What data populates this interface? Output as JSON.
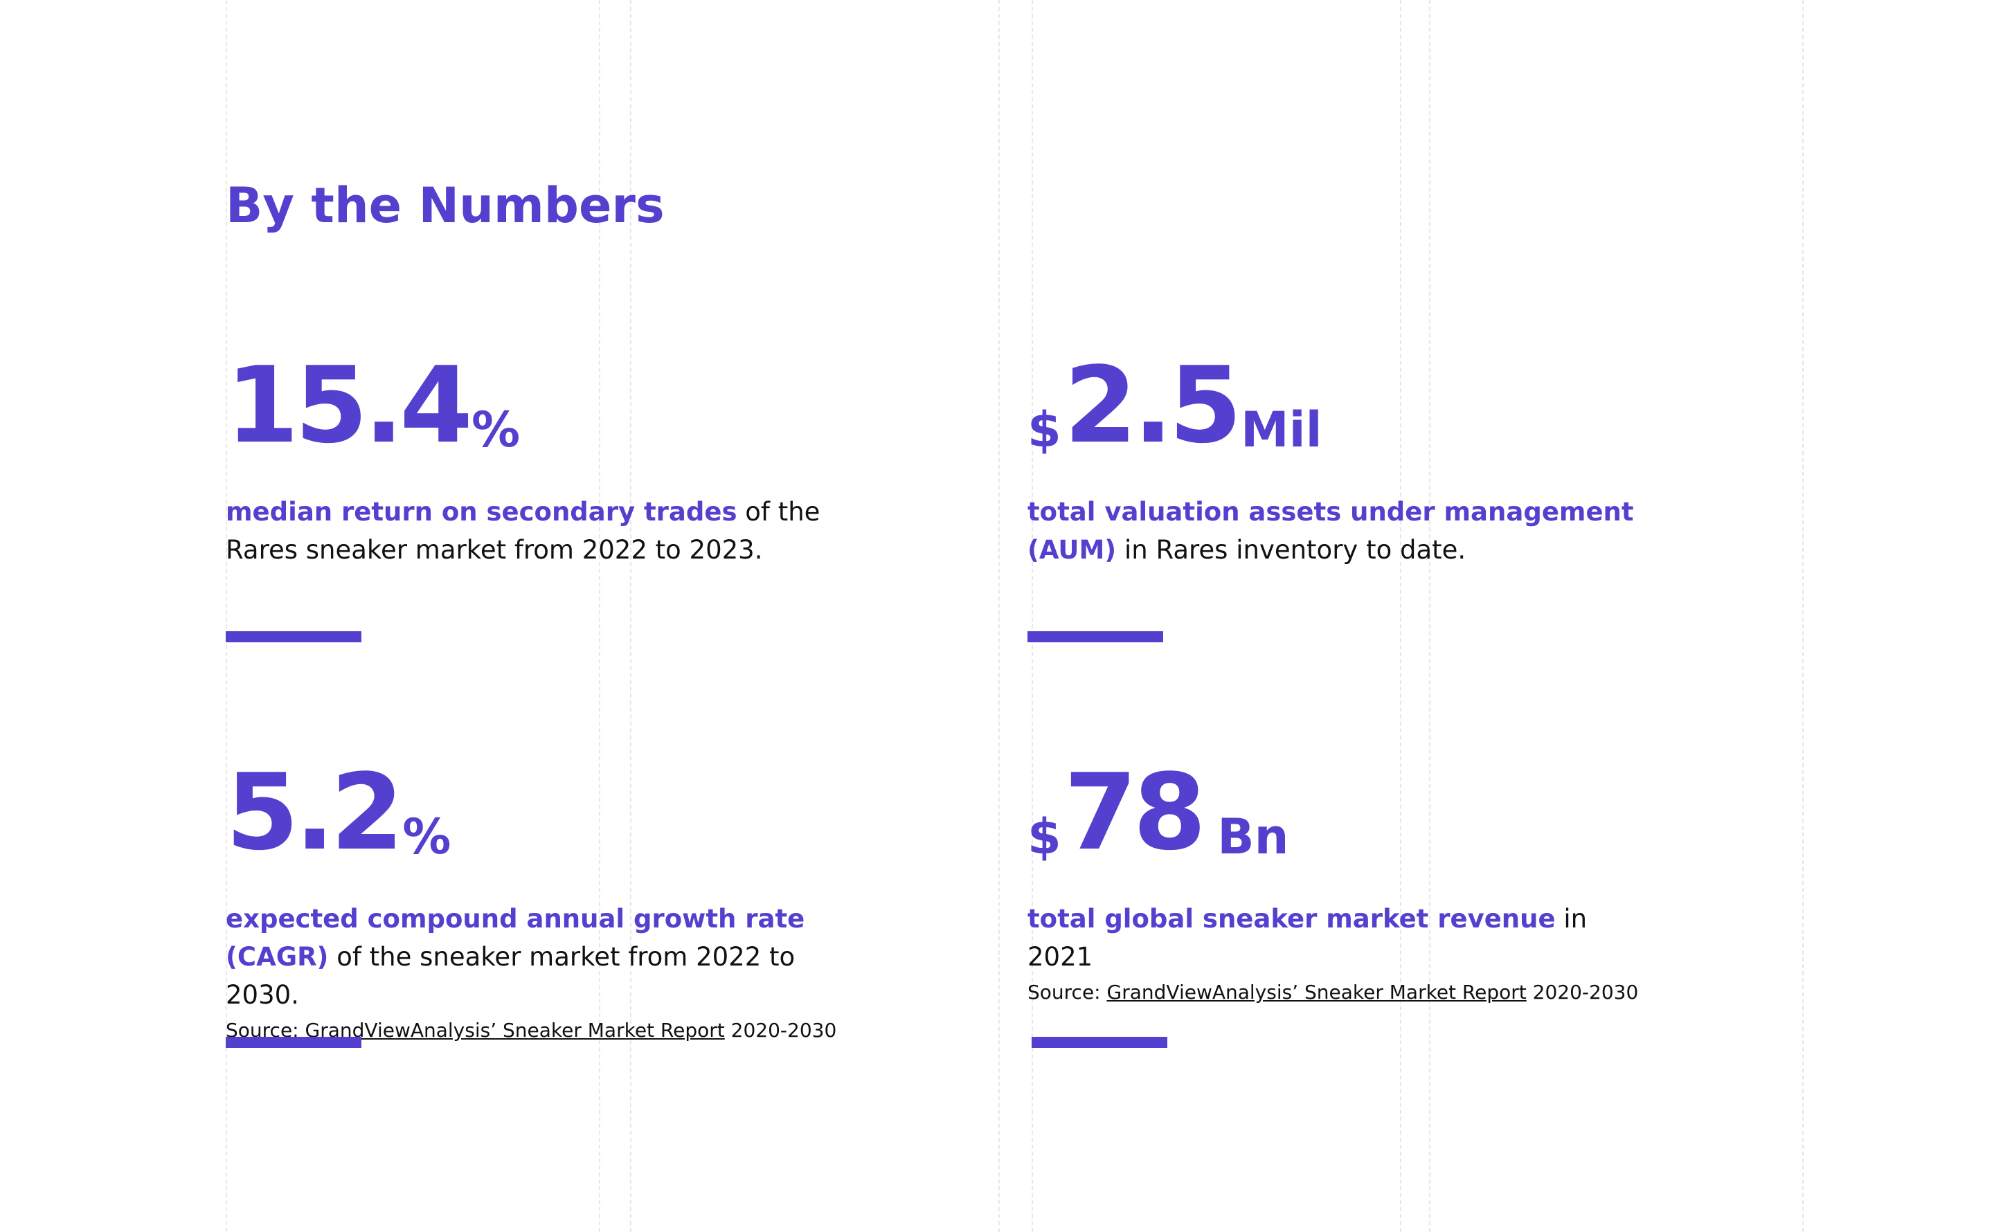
{
  "section": {
    "title": "By the Numbers"
  },
  "stats": [
    {
      "prefix": "",
      "value": "15.4",
      "unit": "%",
      "highlight": "median return on secondary trades",
      "rest": " of the Rares sneaker market from 2022 to 2023."
    },
    {
      "prefix": "$",
      "value": "2.5",
      "unit": "Mil",
      "highlight": "total valuation assets under management (AUM)",
      "rest": " in Rares inventory to date."
    },
    {
      "prefix": "",
      "value": "5.2",
      "unit": "%",
      "highlight": "expected compound annual growth rate (CAGR)",
      "rest": " of the sneaker market from 2022 to 2030.",
      "source": {
        "label": "Source: ",
        "link": "GrandViewAnalysis’ Sneaker Market Report",
        "suffix": " 2020-2030"
      }
    },
    {
      "prefix": "$",
      "value": "78",
      "unit": "Bn",
      "highlight": "total global sneaker market revenue",
      "rest": " in 2021",
      "source": {
        "label": "Source: ",
        "link": "GrandViewAnalysis’ Sneaker Market Report",
        "suffix": " 2020-2030"
      }
    }
  ],
  "colors": {
    "accent": "#5340cf",
    "text": "#111111",
    "guide": "#e7e7ea"
  }
}
